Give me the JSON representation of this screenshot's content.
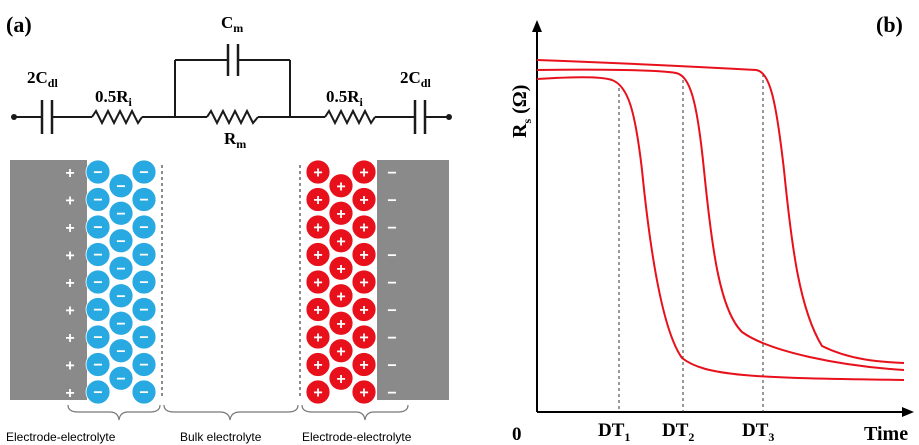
{
  "panel_a": {
    "label": "(a)",
    "circuit": {
      "left_capacitor": {
        "main": "2C",
        "sub": "dl"
      },
      "left_resistor": {
        "main": "0.5R",
        "sub": "i"
      },
      "parallel_capacitor": {
        "main": "C",
        "sub": "m"
      },
      "parallel_resistor": {
        "main": "R",
        "sub": "m"
      },
      "right_resistor": {
        "main": "0.5R",
        "sub": "i"
      },
      "right_capacitor": {
        "main": "2C",
        "sub": "dl"
      }
    },
    "left_plate_sign": "+",
    "right_plate_sign": "−",
    "left_layer_ion_sign": "−",
    "right_layer_ion_sign": "+",
    "colors": {
      "electrode": "#8a8a8a",
      "anion": "#29a9e1",
      "cation": "#e8111b",
      "wire": "#1a1a1a"
    },
    "regions": {
      "left": "Electrode-electrolyte",
      "middle": "Bulk electrolyte",
      "right": "Electrode-electrolyte"
    }
  },
  "panel_b": {
    "label": "(b)",
    "y_axis": {
      "main": "R",
      "sub": "s",
      "rest": " (Ω)"
    },
    "x_axis": "Time",
    "origin": "0",
    "markers": [
      {
        "main": "DT",
        "sub": "1"
      },
      {
        "main": "DT",
        "sub": "2"
      },
      {
        "main": "DT",
        "sub": "3"
      }
    ],
    "curve_color": "#e8111b"
  }
}
